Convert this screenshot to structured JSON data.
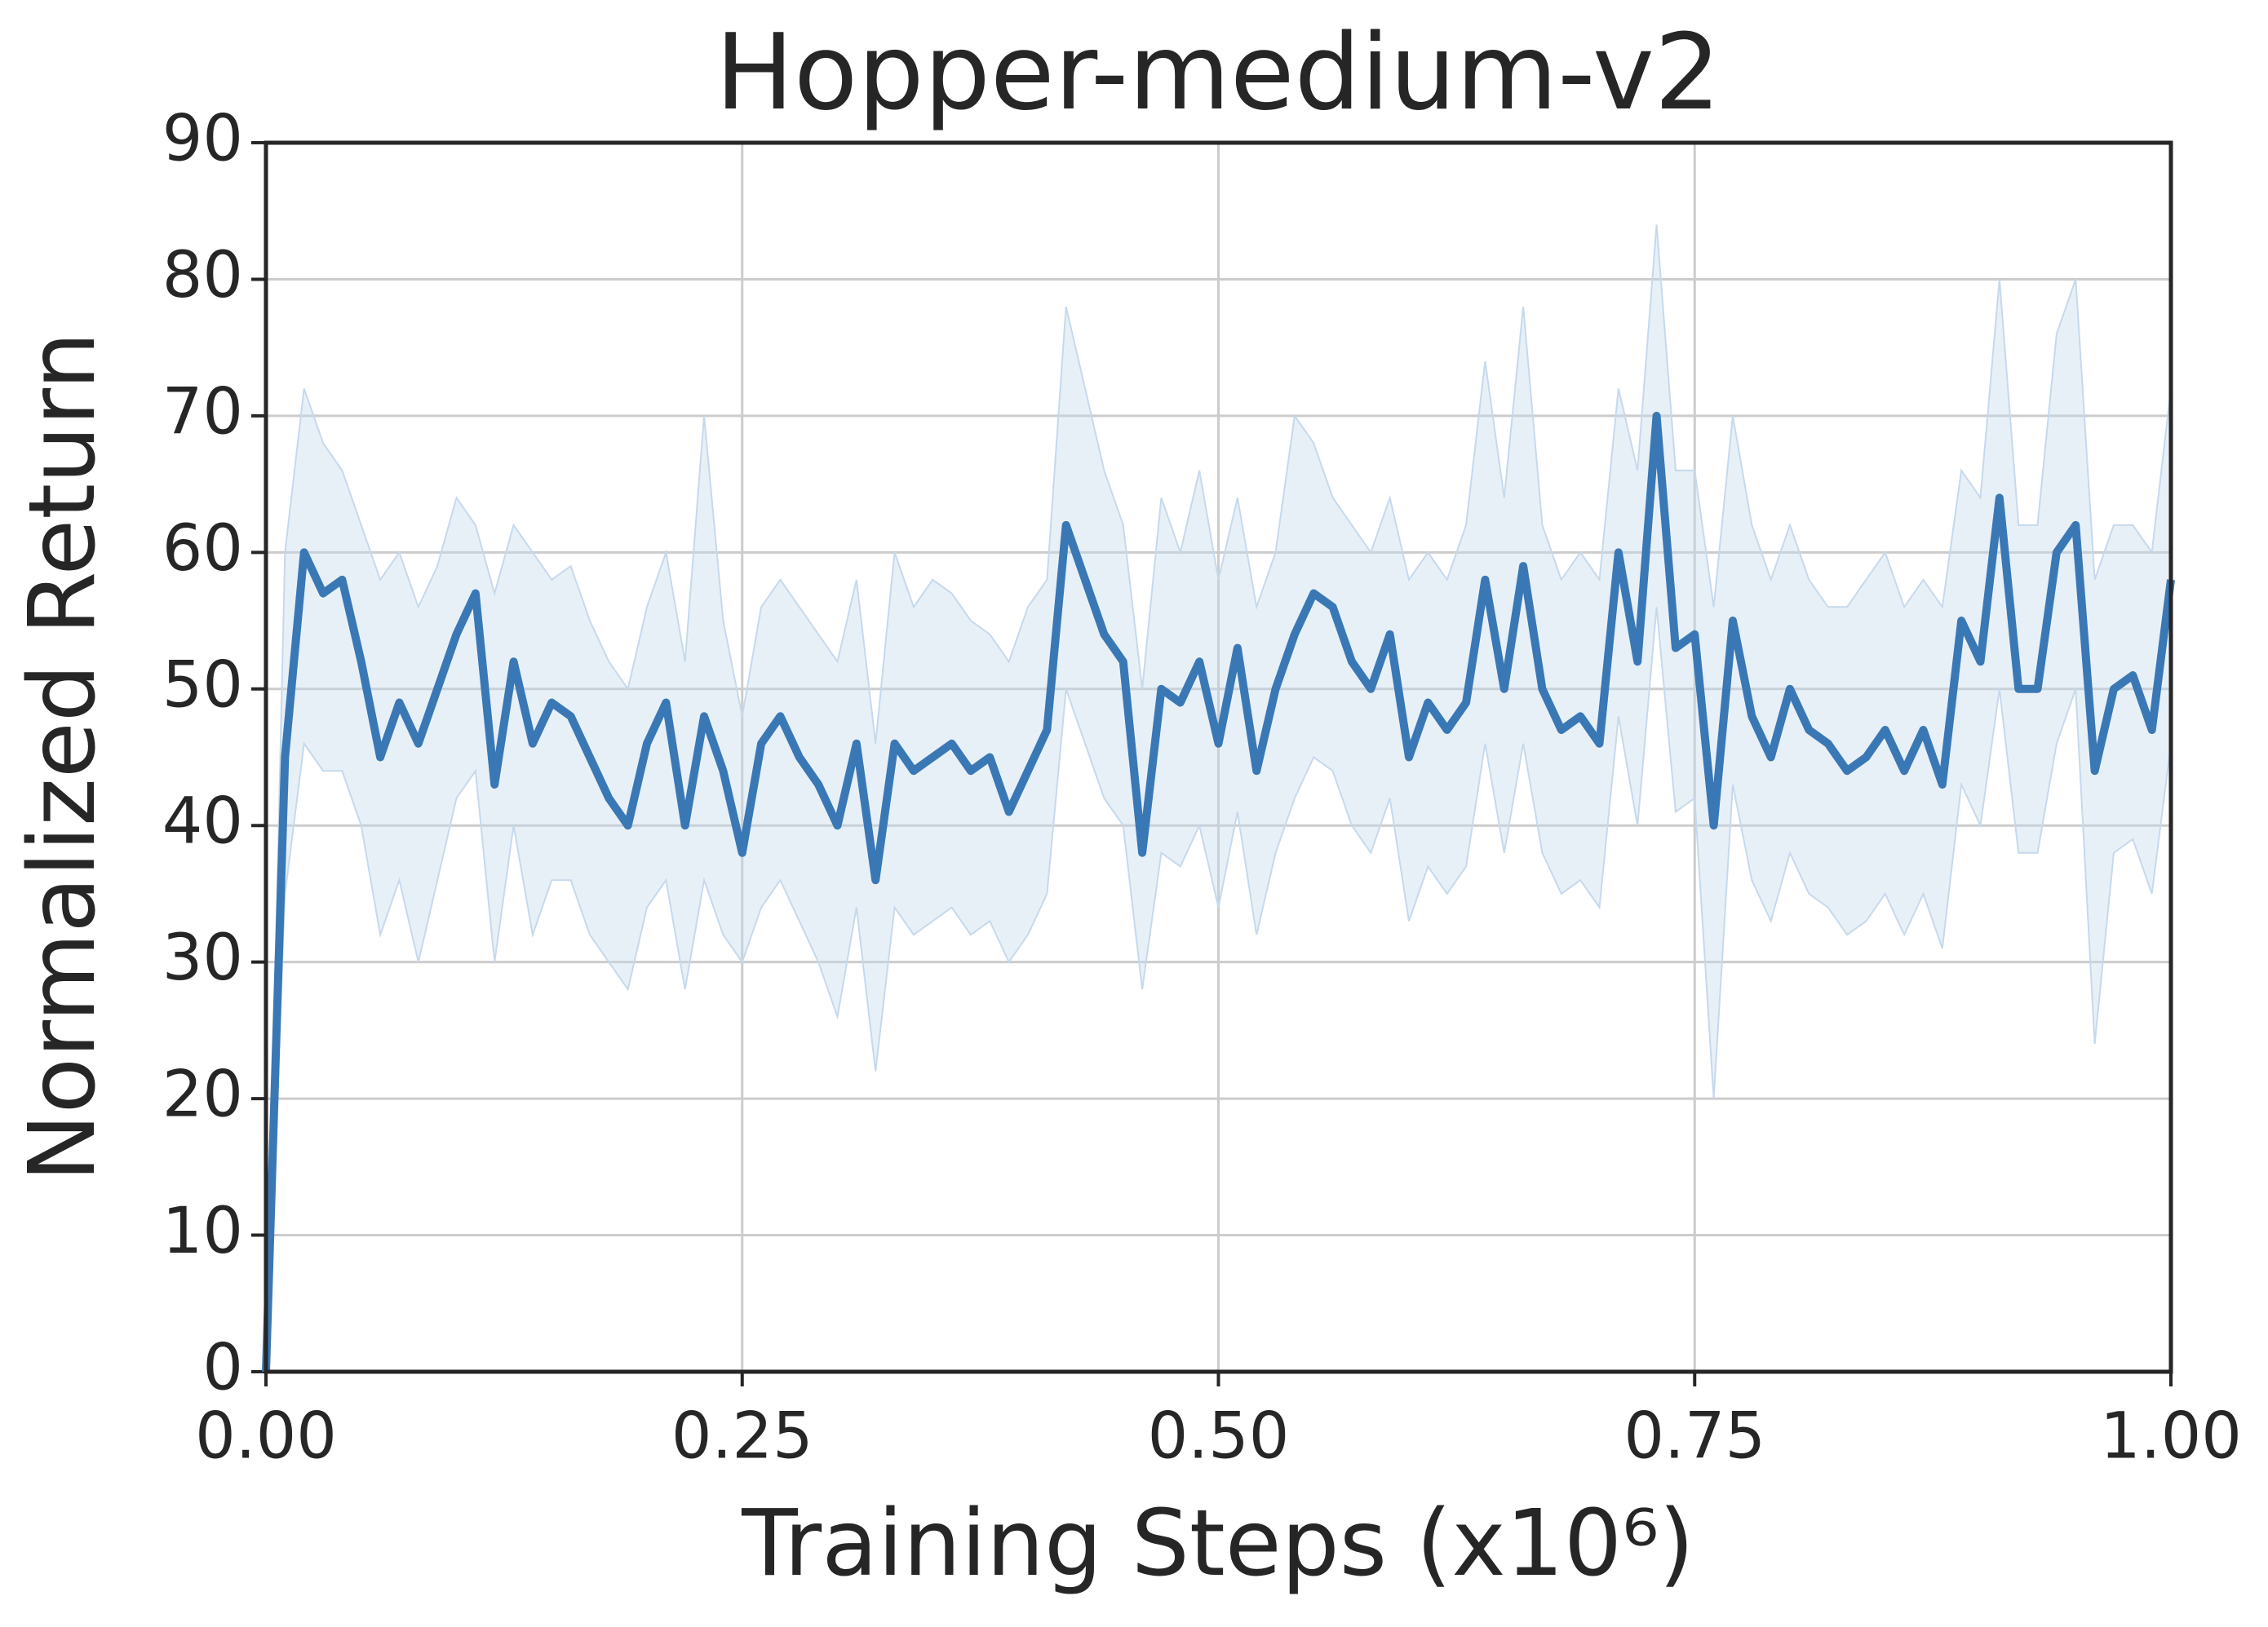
{
  "chart_data": {
    "type": "line",
    "title": "Hopper-medium-v2",
    "x_label": "Training Steps (x10⁶)",
    "y_label": "Normalized Return",
    "color": "#3a78b5",
    "band_color": "#c6d9ec",
    "grid": true,
    "xlim": [
      0,
      1
    ],
    "ylim": [
      0,
      90
    ],
    "xticks": [
      {
        "value": 0,
        "label": "0.00"
      },
      {
        "value": 0.25,
        "label": "0.25"
      },
      {
        "value": 0.5,
        "label": "0.50"
      },
      {
        "value": 0.75,
        "label": "0.75"
      },
      {
        "value": 1,
        "label": "1.00"
      }
    ],
    "yticks": [
      0,
      10,
      20,
      30,
      40,
      50,
      60,
      70,
      80,
      90
    ],
    "x": [
      0,
      0.01,
      0.02,
      0.03,
      0.04,
      0.05,
      0.06,
      0.07,
      0.08,
      0.09,
      0.1,
      0.11,
      0.12,
      0.13,
      0.14,
      0.15,
      0.16,
      0.17,
      0.18,
      0.19,
      0.2,
      0.21,
      0.22,
      0.23,
      0.24,
      0.25,
      0.26,
      0.27,
      0.28,
      0.29,
      0.3,
      0.31,
      0.32,
      0.33,
      0.34,
      0.35,
      0.36,
      0.37,
      0.38,
      0.39,
      0.4,
      0.41,
      0.42,
      0.43,
      0.44,
      0.45,
      0.46,
      0.47,
      0.48,
      0.49,
      0.5,
      0.51,
      0.52,
      0.53,
      0.54,
      0.55,
      0.56,
      0.57,
      0.58,
      0.59,
      0.6,
      0.61,
      0.62,
      0.63,
      0.64,
      0.65,
      0.66,
      0.67,
      0.68,
      0.69,
      0.7,
      0.71,
      0.72,
      0.73,
      0.74,
      0.75,
      0.76,
      0.77,
      0.78,
      0.79,
      0.8,
      0.81,
      0.82,
      0.83,
      0.84,
      0.85,
      0.86,
      0.87,
      0.88,
      0.89,
      0.9,
      0.91,
      0.92,
      0.93,
      0.94,
      0.95,
      0.96,
      0.97,
      0.98,
      0.99,
      1
    ],
    "values": [
      0,
      45,
      60,
      57,
      58,
      52,
      45,
      49,
      46,
      50,
      54,
      57,
      43,
      52,
      46,
      49,
      48,
      45,
      42,
      40,
      46,
      49,
      40,
      48,
      44,
      38,
      46,
      48,
      45,
      43,
      40,
      46,
      36,
      46,
      44,
      45,
      46,
      44,
      45,
      41,
      44,
      47,
      62,
      58,
      54,
      52,
      38,
      50,
      49,
      52,
      46,
      53,
      44,
      50,
      54,
      57,
      56,
      52,
      50,
      54,
      45,
      49,
      47,
      49,
      58,
      50,
      59,
      50,
      47,
      48,
      46,
      60,
      52,
      70,
      53,
      54,
      40,
      55,
      48,
      45,
      50,
      47,
      46,
      44,
      45,
      47,
      44,
      47,
      43,
      55,
      52,
      64,
      50,
      50,
      60,
      62,
      44,
      50,
      51,
      47,
      58
    ],
    "upper": [
      0,
      60,
      72,
      68,
      66,
      62,
      58,
      60,
      56,
      59,
      64,
      62,
      57,
      62,
      60,
      58,
      59,
      55,
      52,
      50,
      56,
      60,
      52,
      70,
      55,
      48,
      56,
      58,
      56,
      54,
      52,
      58,
      46,
      60,
      56,
      58,
      57,
      55,
      54,
      52,
      56,
      58,
      78,
      72,
      66,
      62,
      50,
      64,
      60,
      66,
      58,
      64,
      56,
      60,
      70,
      68,
      64,
      62,
      60,
      64,
      58,
      60,
      58,
      62,
      74,
      64,
      78,
      62,
      58,
      60,
      58,
      72,
      66,
      84,
      66,
      66,
      56,
      70,
      62,
      58,
      62,
      58,
      56,
      56,
      58,
      60,
      56,
      58,
      56,
      66,
      64,
      80,
      62,
      62,
      76,
      80,
      58,
      62,
      62,
      60,
      72
    ],
    "lower": [
      0,
      35,
      46,
      44,
      44,
      40,
      32,
      36,
      30,
      36,
      42,
      44,
      30,
      40,
      32,
      36,
      36,
      32,
      30,
      28,
      34,
      36,
      28,
      36,
      32,
      30,
      34,
      36,
      33,
      30,
      26,
      34,
      22,
      34,
      32,
      33,
      34,
      32,
      33,
      30,
      32,
      35,
      50,
      46,
      42,
      40,
      28,
      38,
      37,
      40,
      34,
      41,
      32,
      38,
      42,
      45,
      44,
      40,
      38,
      42,
      33,
      37,
      35,
      37,
      46,
      38,
      46,
      38,
      35,
      36,
      34,
      48,
      40,
      56,
      41,
      42,
      20,
      43,
      36,
      33,
      38,
      35,
      34,
      32,
      33,
      35,
      32,
      35,
      31,
      43,
      40,
      50,
      38,
      38,
      46,
      50,
      24,
      38,
      39,
      35,
      46
    ]
  }
}
